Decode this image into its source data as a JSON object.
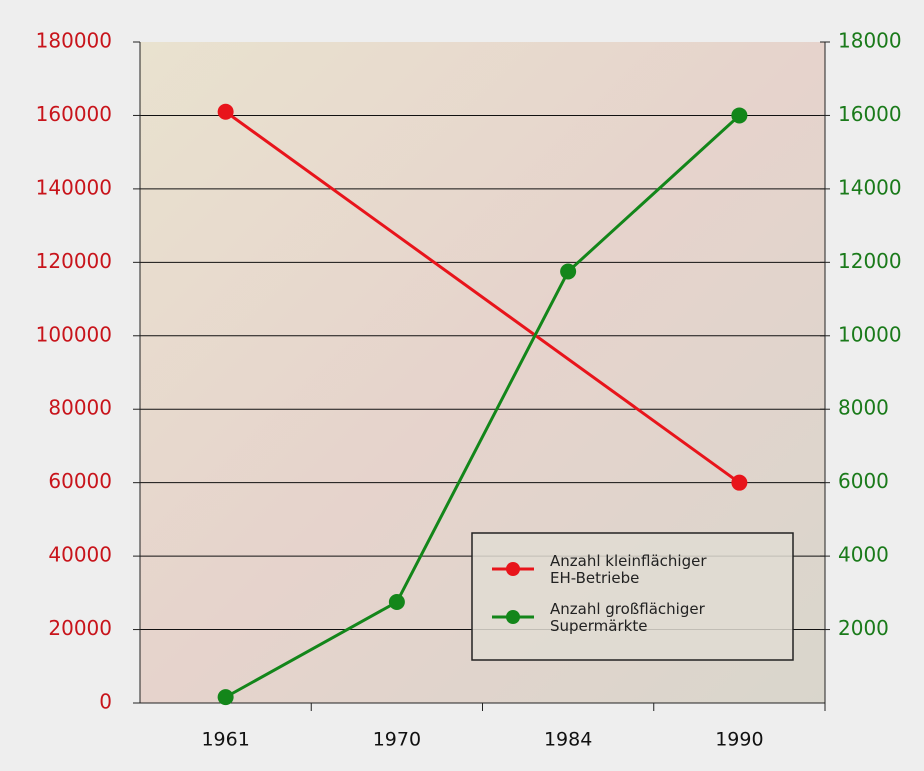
{
  "chart_data": {
    "type": "line",
    "categories": [
      "1961",
      "1970",
      "1984",
      "1990"
    ],
    "series": [
      {
        "name": "Anzahl kleinflächiger EH-Betriebe",
        "color": "#e8141b",
        "values": [
          161000,
          null,
          null,
          60000
        ]
      },
      {
        "name": "Anzahl großflächiger Supermärkte",
        "color": "#13861a",
        "axis": "y2",
        "values": [
          160,
          2750,
          11750,
          16000
        ]
      }
    ],
    "ylim": [
      0,
      180000
    ],
    "yticks": [
      0,
      20000,
      40000,
      60000,
      80000,
      100000,
      120000,
      140000,
      160000,
      180000
    ],
    "y2lim": [
      0,
      18000
    ],
    "y2ticks": [
      2000,
      4000,
      6000,
      8000,
      10000,
      12000,
      14000,
      16000,
      18000
    ],
    "grid": true,
    "legend": "lower right"
  }
}
